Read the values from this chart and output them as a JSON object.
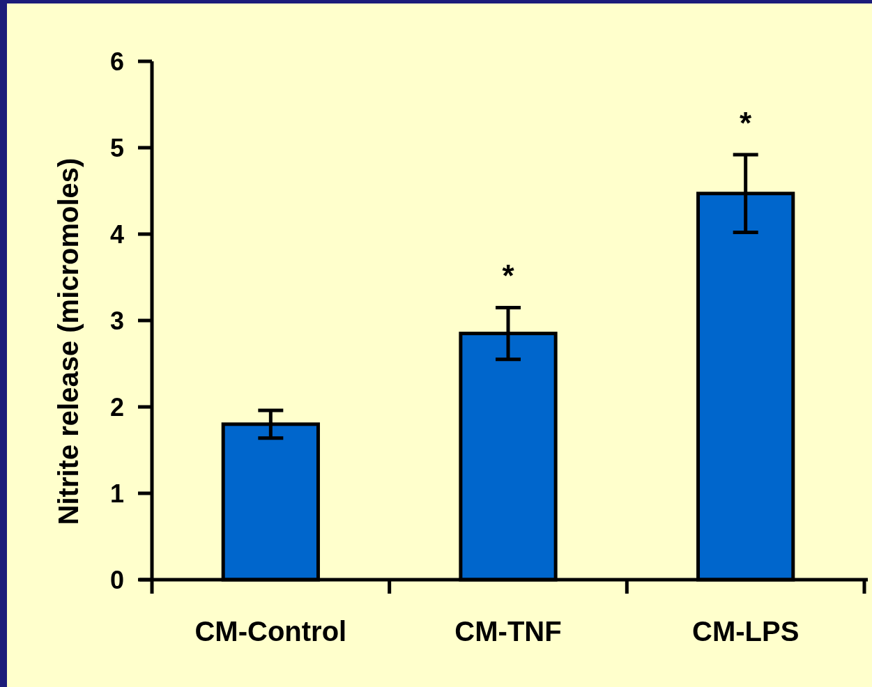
{
  "chart_data": {
    "type": "bar",
    "ylabel": "Nitrite release (micromoles)",
    "categories": [
      "CM-Control",
      "CM-TNF",
      "CM-LPS"
    ],
    "values": [
      1.8,
      2.85,
      4.47
    ],
    "errors": [
      0.16,
      0.3,
      0.45
    ],
    "color": "#0066cc",
    "ylim": [
      0,
      6
    ],
    "yticks": [
      0,
      1,
      2,
      3,
      4,
      5,
      6
    ],
    "annotations": [
      "*",
      "*"
    ],
    "grid": false
  }
}
